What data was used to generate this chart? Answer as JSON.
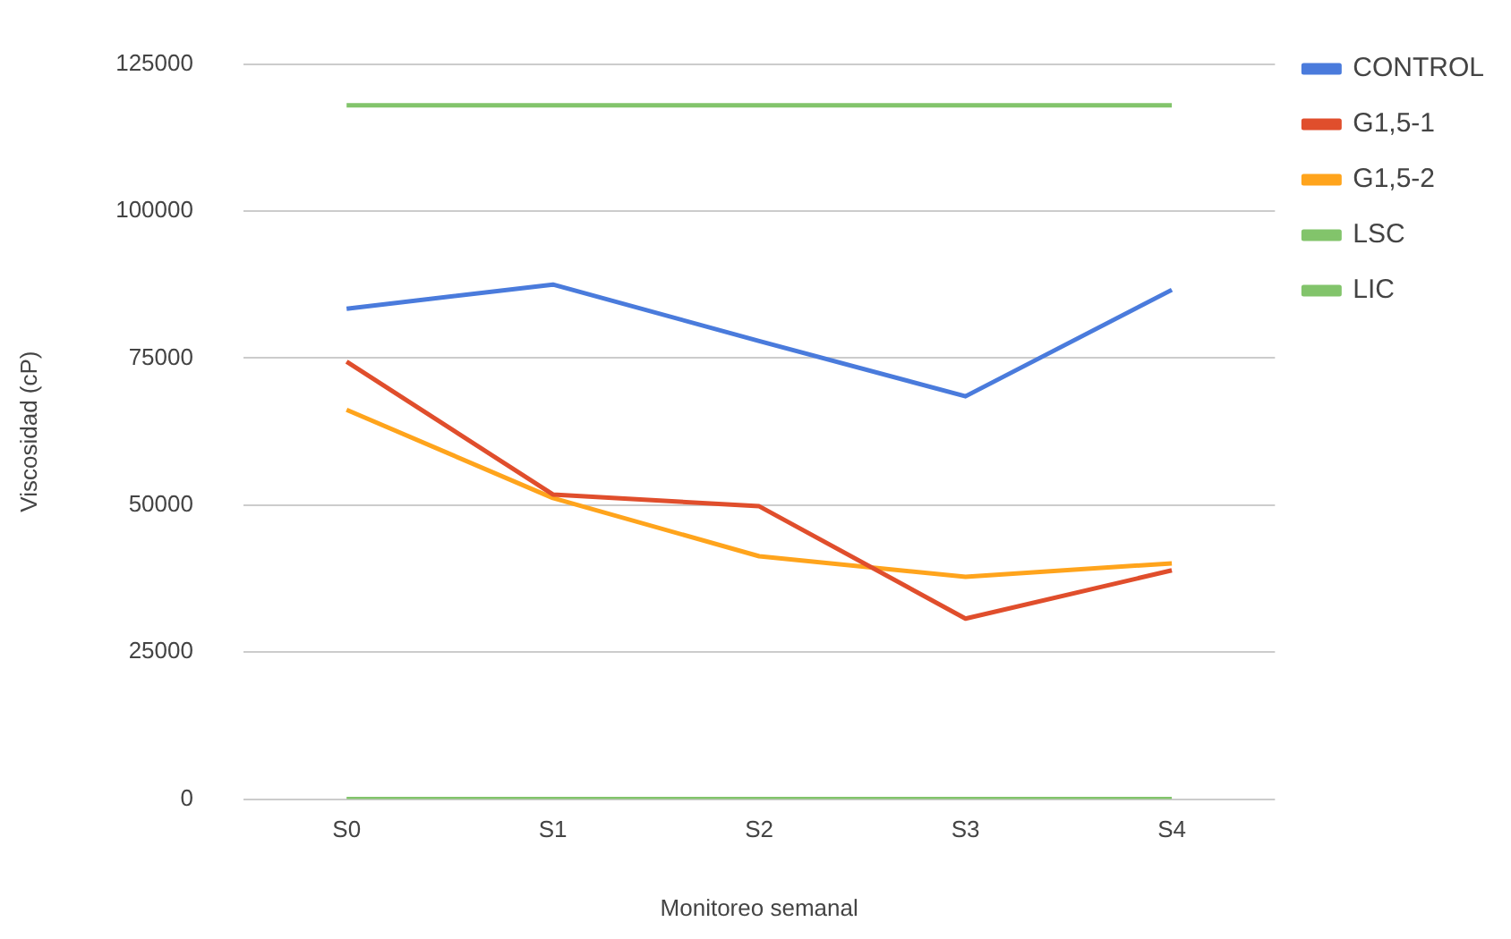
{
  "chart_data": {
    "type": "line",
    "xlabel": "Monitoreo semanal",
    "ylabel": "Viscosidad (cP)",
    "categories": [
      "S0",
      "S1",
      "S2",
      "S3",
      "S4"
    ],
    "series": [
      {
        "name": "CONTROL",
        "color": "#4a7bdc",
        "values": [
          83400,
          87500,
          77900,
          68500,
          86600
        ]
      },
      {
        "name": "G1,5-1",
        "color": "#e04e2c",
        "values": [
          74400,
          51800,
          49800,
          30700,
          38900
        ]
      },
      {
        "name": "G1,5-2",
        "color": "#ffa41c",
        "values": [
          66200,
          51200,
          41300,
          37800,
          40100
        ]
      },
      {
        "name": "LSC",
        "color": "#82c46b",
        "values": [
          118000,
          118000,
          118000,
          118000,
          118000
        ]
      },
      {
        "name": "LIC",
        "color": "#82c46b",
        "values": [
          0,
          0,
          0,
          0,
          0
        ]
      }
    ],
    "ylim": [
      0,
      125000
    ],
    "yticks": [
      0,
      25000,
      50000,
      75000,
      100000,
      125000
    ],
    "grid": "y",
    "legend": "top right",
    "marker": "none",
    "line_style": "solid"
  }
}
